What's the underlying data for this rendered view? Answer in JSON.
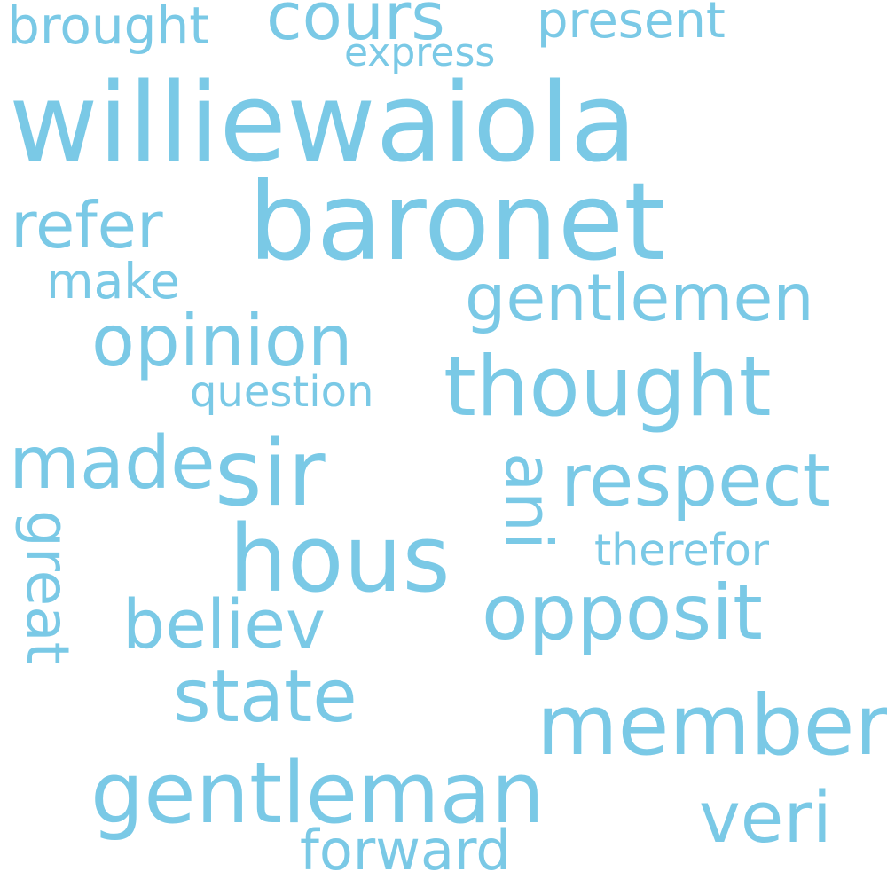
{
  "colors": {
    "word": "#7ac9e6",
    "background": "#ffffff"
  },
  "words": {
    "williewaiola": "williewaiola",
    "baronet": "baronet",
    "thought": "thought",
    "sir": "sir",
    "hous": "hous",
    "gentleman": "gentleman",
    "member": "member",
    "opposit": "opposit",
    "opinion": "opinion",
    "gentlemen": "gentlemen",
    "respect": "respect",
    "state": "state",
    "made": "made",
    "refer": "refer",
    "cours": "cours",
    "believ": "believ",
    "veri": "veri",
    "ani": "ani",
    "present": "present",
    "brought": "brought",
    "great": "great",
    "forward": "forward",
    "make": "make",
    "question": "question",
    "therefor": "therefor",
    "express": "express"
  }
}
